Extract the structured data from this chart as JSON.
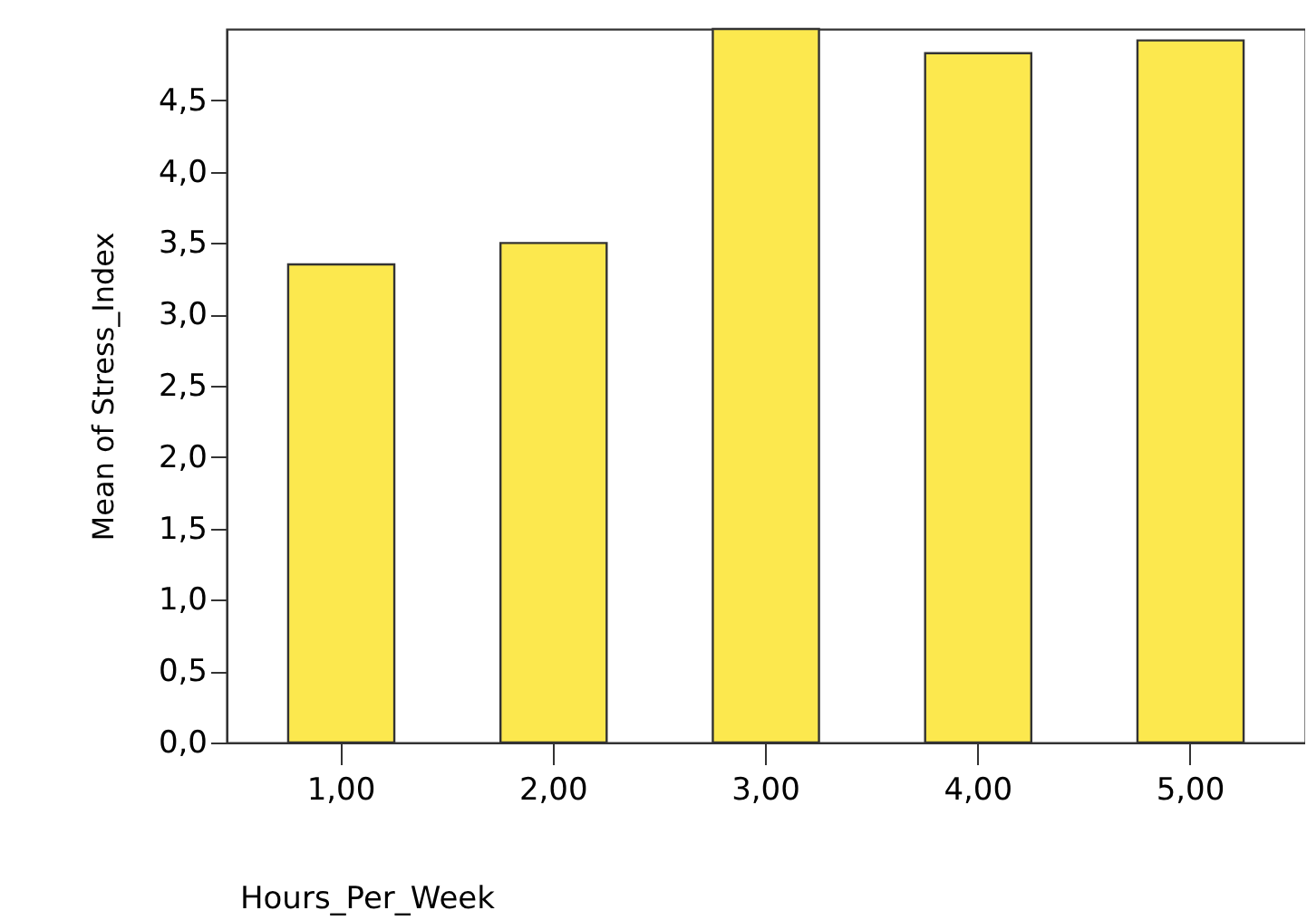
{
  "chart_data": {
    "type": "bar",
    "xlabel": "Hours_Per_Week",
    "ylabel": "Mean of Stress_Index",
    "categories": [
      "1,00",
      "2,00",
      "3,00",
      "4,00",
      "5,00"
    ],
    "values": [
      3.35,
      3.5,
      5.0,
      4.83,
      4.92
    ],
    "color": "#fce84e",
    "ylim": [
      0,
      5
    ],
    "yticks": [
      {
        "value": 0,
        "label": "0,0"
      },
      {
        "value": 0.5,
        "label": "0,5"
      },
      {
        "value": 1,
        "label": "1,0"
      },
      {
        "value": 1.5,
        "label": "1,5"
      },
      {
        "value": 2,
        "label": "2,0"
      },
      {
        "value": 2.5,
        "label": "2,5"
      },
      {
        "value": 3,
        "label": "3,0"
      },
      {
        "value": 3.5,
        "label": "3,5"
      },
      {
        "value": 4,
        "label": "4,0"
      },
      {
        "value": 4.5,
        "label": "4,5"
      }
    ],
    "grid": false
  }
}
